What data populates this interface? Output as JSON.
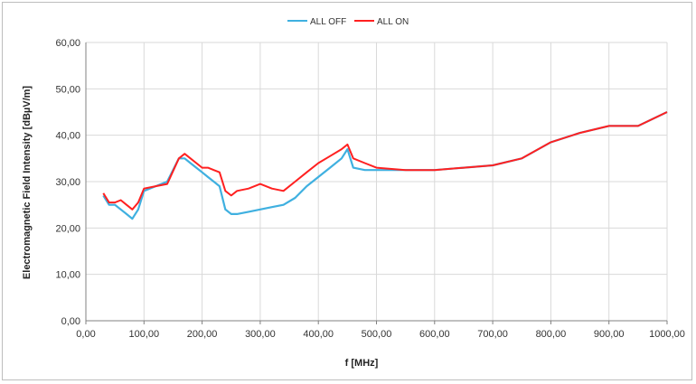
{
  "chart_data": {
    "type": "line",
    "title": "",
    "xlabel": "f [MHz]",
    "ylabel": "Electromagnetic Field Intensity  [dBµV/m]",
    "xlim": [
      0,
      1000
    ],
    "ylim": [
      0,
      60
    ],
    "x_ticks": [
      "0,00",
      "100,00",
      "200,00",
      "300,00",
      "400,00",
      "500,00",
      "600,00",
      "700,00",
      "800,00",
      "900,00",
      "1000,00"
    ],
    "y_ticks": [
      "0,00",
      "10,00",
      "20,00",
      "30,00",
      "40,00",
      "50,00",
      "60,00"
    ],
    "grid": true,
    "legend_position": "top-center",
    "series": [
      {
        "name": "ALL OFF",
        "color": "#3fb0e0",
        "x": [
          30,
          40,
          50,
          60,
          70,
          80,
          90,
          100,
          120,
          140,
          160,
          170,
          180,
          190,
          200,
          210,
          220,
          230,
          240,
          250,
          260,
          280,
          300,
          320,
          340,
          360,
          380,
          400,
          420,
          440,
          450,
          460,
          480,
          500,
          550,
          600,
          650,
          700,
          750,
          800,
          850,
          900,
          950,
          1000
        ],
        "y": [
          27,
          25,
          25,
          24,
          23,
          22,
          24,
          28,
          29,
          30,
          35,
          35,
          34,
          33,
          32,
          31,
          30,
          29,
          24,
          23,
          23,
          23.5,
          24,
          24.5,
          25,
          26.5,
          29,
          31,
          33,
          35,
          37,
          33,
          32.5,
          32.5,
          32.5,
          32.5,
          33,
          33.5,
          35,
          38.5,
          40.5,
          42,
          42,
          45
        ]
      },
      {
        "name": "ALL ON",
        "color": "#ff2020",
        "x": [
          30,
          40,
          50,
          60,
          70,
          80,
          90,
          100,
          120,
          140,
          160,
          170,
          180,
          190,
          200,
          210,
          220,
          230,
          240,
          250,
          260,
          280,
          300,
          320,
          340,
          360,
          380,
          400,
          420,
          440,
          450,
          460,
          480,
          500,
          550,
          600,
          650,
          700,
          750,
          800,
          850,
          900,
          950,
          1000
        ],
        "y": [
          27.5,
          25.5,
          25.5,
          26,
          25,
          24,
          25.5,
          28.5,
          29,
          29.5,
          35,
          36,
          35,
          34,
          33,
          33,
          32.5,
          32,
          28,
          27,
          28,
          28.5,
          29.5,
          28.5,
          28,
          30,
          32,
          34,
          35.5,
          37,
          38,
          35,
          34,
          33,
          32.5,
          32.5,
          33,
          33.5,
          35,
          38.5,
          40.5,
          42,
          42,
          45
        ]
      }
    ]
  }
}
